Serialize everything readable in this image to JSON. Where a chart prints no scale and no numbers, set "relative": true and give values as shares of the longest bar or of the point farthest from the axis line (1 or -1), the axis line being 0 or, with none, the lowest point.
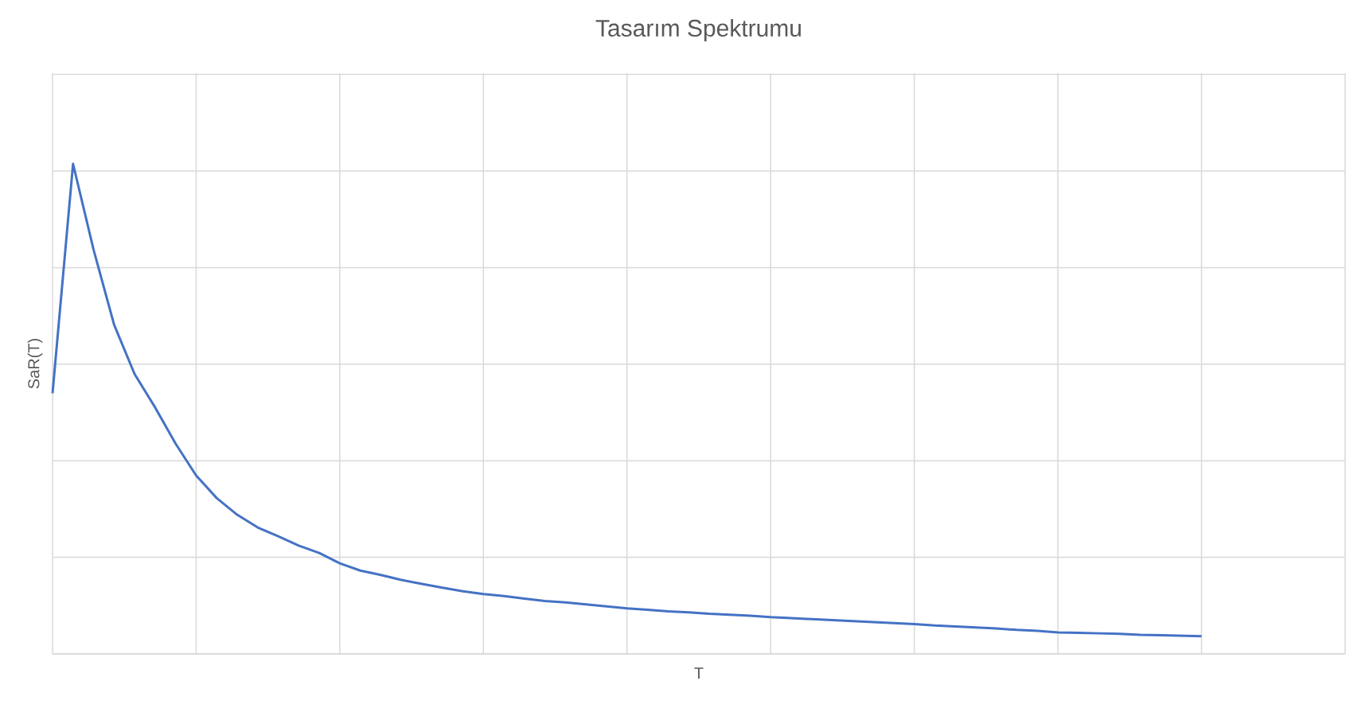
{
  "chart_data": {
    "type": "line",
    "title": "Tasarım Spektrumu",
    "xlabel": "T",
    "ylabel": "SaR(T)",
    "relative": true,
    "grid": true,
    "color": "#4472c4",
    "categories": [
      null,
      null,
      null,
      null,
      null,
      null,
      null,
      null,
      null,
      null,
      null,
      null,
      null,
      null,
      null,
      null,
      null,
      null,
      null,
      null,
      null,
      null,
      null,
      null,
      null,
      null,
      null,
      null,
      null,
      null,
      null,
      null,
      null,
      null,
      null,
      null,
      null,
      null,
      null,
      null,
      null,
      null,
      null,
      null,
      null,
      null,
      null,
      null,
      null,
      null,
      null,
      null,
      null,
      null,
      null,
      null,
      null,
      null,
      null,
      null,
      null,
      null,
      null,
      null
    ],
    "values": [
      0.532,
      1,
      0.825,
      0.672,
      0.571,
      0.503,
      0.429,
      0.364,
      0.318,
      0.284,
      0.258,
      0.24,
      0.221,
      0.206,
      0.185,
      0.17,
      0.161,
      0.151,
      0.143,
      0.135,
      0.128,
      0.122,
      0.118,
      0.113,
      0.108,
      0.105,
      0.101,
      0.097,
      0.093,
      0.09,
      0.087,
      0.085,
      0.082,
      0.08,
      0.078,
      0.075,
      0.073,
      0.071,
      0.069,
      0.067,
      0.065,
      0.063,
      0.061,
      0.058,
      0.056,
      0.054,
      0.052,
      0.049,
      0.047,
      0.044,
      0.043,
      0.042,
      0.041,
      0.039,
      0.038,
      0.037,
      0.036,
      null,
      null,
      null,
      null,
      null,
      null,
      null
    ]
  }
}
